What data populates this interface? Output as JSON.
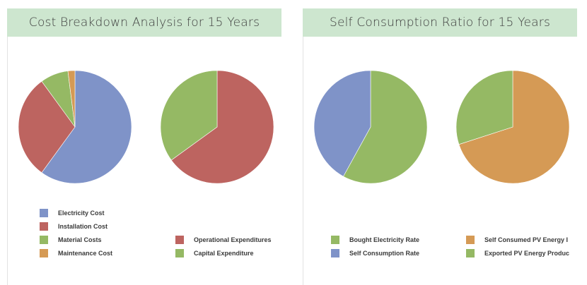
{
  "header_left": {
    "title": "Cost Breakdown Analysis for 15 Years"
  },
  "header_right": {
    "title": "Self Consumption Ratio for 15 Years"
  },
  "chart_data": [
    {
      "type": "pie",
      "id": "pie1",
      "slices": [
        {
          "name": "Electricity Cost",
          "value": 60,
          "color": "#7f93c8"
        },
        {
          "name": "Installation Cost",
          "value": 30,
          "color": "#bd6460"
        },
        {
          "name": "Material Costs",
          "value": 8,
          "color": "#95b964"
        },
        {
          "name": "Maintenance Cost",
          "value": 2,
          "color": "#d59a55"
        }
      ]
    },
    {
      "type": "pie",
      "id": "pie2",
      "slices": [
        {
          "name": "Operational Expenditures",
          "value": 65,
          "color": "#bd6460"
        },
        {
          "name": "Capital Expenditure",
          "value": 35,
          "color": "#95b964"
        }
      ]
    },
    {
      "type": "pie",
      "id": "pie3",
      "slices": [
        {
          "name": "Bought Electricity Rate",
          "value": 58,
          "color": "#95b964"
        },
        {
          "name": "Self Consumption Rate",
          "value": 42,
          "color": "#7f93c8"
        }
      ]
    },
    {
      "type": "pie",
      "id": "pie4",
      "slices": [
        {
          "name": "Self Consumed PV Energy I",
          "value": 70,
          "color": "#d59a55"
        },
        {
          "name": "Exported PV Energy Produc",
          "value": 30,
          "color": "#95b964"
        }
      ]
    }
  ]
}
